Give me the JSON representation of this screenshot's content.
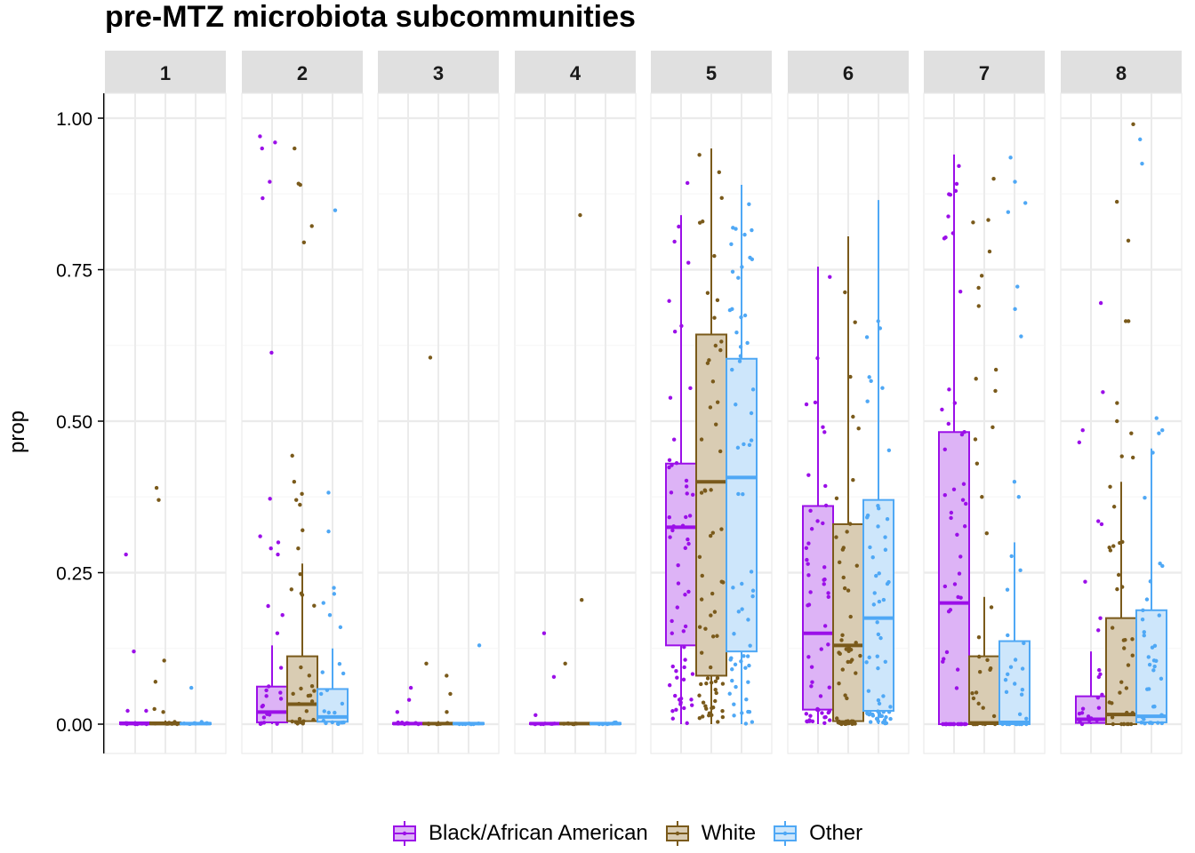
{
  "chart_data": {
    "type": "boxplot",
    "title": "pre-MTZ microbiota subcommunities",
    "ylabel": "prop",
    "xlabel": "",
    "ylim": [
      -0.05,
      1.05
    ],
    "yticks": [
      "0.00",
      "0.25",
      "0.50",
      "0.75",
      "1.00"
    ],
    "ytick_values": [
      0,
      0.25,
      0.5,
      0.75,
      1.0
    ],
    "facets": [
      "1",
      "2",
      "3",
      "4",
      "5",
      "6",
      "7",
      "8"
    ],
    "legend_position": "bottom",
    "series": [
      {
        "name": "Black/African American",
        "color": "#9B0FE8",
        "fill": "#DDB3F6"
      },
      {
        "name": "White",
        "color": "#7A5A1B",
        "fill": "#D9CCB3"
      },
      {
        "name": "Other",
        "color": "#4FA8F5",
        "fill": "#CDE6FB"
      }
    ],
    "boxes": [
      [
        [
          0,
          0,
          0.001,
          0.003,
          0.005
        ],
        [
          0,
          0,
          0.001,
          0.003,
          0.006
        ],
        [
          0,
          0,
          0.001,
          0.002,
          0.004
        ]
      ],
      [
        [
          0,
          0.003,
          0.02,
          0.062,
          0.13
        ],
        [
          0,
          0.005,
          0.033,
          0.112,
          0.265
        ],
        [
          0,
          0.004,
          0.012,
          0.058,
          0.125
        ]
      ],
      [
        [
          0,
          0,
          0.001,
          0.002,
          0.004
        ],
        [
          0,
          0,
          0.001,
          0.002,
          0.005
        ],
        [
          0,
          0,
          0.001,
          0.002,
          0.003
        ]
      ],
      [
        [
          0,
          0,
          0.001,
          0.002,
          0.004
        ],
        [
          0,
          0,
          0.001,
          0.002,
          0.004
        ],
        [
          0,
          0,
          0.001,
          0.002,
          0.003
        ]
      ],
      [
        [
          0,
          0.13,
          0.325,
          0.43,
          0.84
        ],
        [
          0,
          0.08,
          0.4,
          0.643,
          0.95
        ],
        [
          0,
          0.12,
          0.407,
          0.603,
          0.89
        ]
      ],
      [
        [
          0,
          0.024,
          0.15,
          0.36,
          0.755
        ],
        [
          0,
          0.005,
          0.13,
          0.33,
          0.805
        ],
        [
          0,
          0.022,
          0.175,
          0.37,
          0.865
        ]
      ],
      [
        [
          0,
          0,
          0.2,
          0.482,
          0.94
        ],
        [
          0,
          0,
          0.002,
          0.112,
          0.21
        ],
        [
          0,
          0,
          0.003,
          0.137,
          0.3
        ]
      ],
      [
        [
          0,
          0.002,
          0.008,
          0.046,
          0.12
        ],
        [
          0,
          0,
          0.016,
          0.175,
          0.4
        ],
        [
          0,
          0.003,
          0.013,
          0.188,
          0.455
        ]
      ]
    ],
    "outliers": [
      [
        [
          0.28,
          0.12,
          0.022,
          0.022
        ],
        [
          0.39,
          0.37,
          0.105,
          0.07,
          0.025,
          0.02
        ],
        [
          0.06
        ]
      ],
      [
        [
          0.97,
          0.96,
          0.95,
          0.895,
          0.868,
          0.613,
          0.372,
          0.31,
          0.3,
          0.29,
          0.28,
          0.195,
          0.18,
          0.15
        ],
        [
          0.95,
          0.892,
          0.89,
          0.822,
          0.795,
          0.443,
          0.4,
          0.38,
          0.37,
          0.362,
          0.32,
          0.29
        ],
        [
          0.848,
          0.382,
          0.318,
          0.225,
          0.215,
          0.2,
          0.18,
          0.16
        ]
      ],
      [
        [
          0.06,
          0.04,
          0.02
        ],
        [
          0.605,
          0.1,
          0.08,
          0.05,
          0.02
        ],
        [
          0.13
        ]
      ],
      [
        [
          0.15,
          0.078,
          0.015
        ],
        [
          0.84,
          0.205,
          0.1
        ],
        []
      ],
      [
        [
          0.893
        ],
        [],
        []
      ],
      [
        [],
        [],
        []
      ],
      [
        [],
        [
          0.9,
          0.832,
          0.828,
          0.78,
          0.74,
          0.72,
          0.69,
          0.585,
          0.57,
          0.55,
          0.49,
          0.47,
          0.43,
          0.375,
          0.315
        ],
        [
          0.935,
          0.895,
          0.86,
          0.845,
          0.722,
          0.685,
          0.64,
          0.4,
          0.375
        ]
      ],
      [
        [
          0.695,
          0.548,
          0.485,
          0.465,
          0.335,
          0.33,
          0.235,
          0.175,
          0.155
        ],
        [
          0.99,
          0.862,
          0.798,
          0.665,
          0.665,
          0.53,
          0.5,
          0.48,
          0.442,
          0.44
        ],
        [
          0.965,
          0.925,
          0.505,
          0.485,
          0.48
        ]
      ]
    ]
  }
}
